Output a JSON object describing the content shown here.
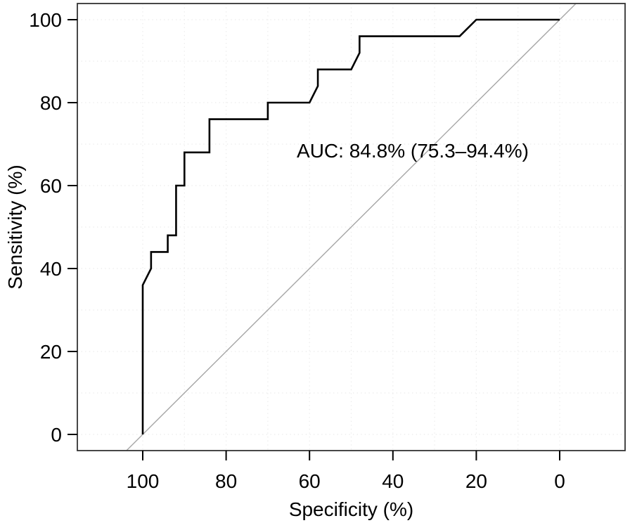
{
  "figure": {
    "background": "#ffffff"
  },
  "chart_data": {
    "type": "line",
    "subtype": "roc-step-curve",
    "title": "",
    "xlabel": "Specificity (%)",
    "ylabel": "Sensitivity (%)",
    "x_direction": "reversed",
    "xlim": [
      100,
      0
    ],
    "ylim": [
      0,
      100
    ],
    "x_ticks": [
      100,
      80,
      60,
      40,
      20,
      0
    ],
    "y_ticks": [
      0,
      20,
      40,
      60,
      80,
      100
    ],
    "grid": {
      "show": true,
      "interval": 10,
      "style": "dotted",
      "color": "#ebebeb"
    },
    "annotation": {
      "text": "AUC: 84.8% (75.3–94.4%)",
      "auc_percent": 84.8,
      "ci_low_percent": 75.3,
      "ci_high_percent": 94.4
    },
    "series": [
      {
        "name": "ROC curve",
        "color": "#000000",
        "points": [
          [
            100,
            0
          ],
          [
            100,
            36
          ],
          [
            98,
            40
          ],
          [
            98,
            44
          ],
          [
            94,
            44
          ],
          [
            94,
            48
          ],
          [
            92,
            48
          ],
          [
            92,
            60
          ],
          [
            90,
            60
          ],
          [
            90,
            68
          ],
          [
            84,
            68
          ],
          [
            84,
            76
          ],
          [
            70,
            76
          ],
          [
            70,
            80
          ],
          [
            60,
            80
          ],
          [
            58,
            84
          ],
          [
            58,
            88
          ],
          [
            50,
            88
          ],
          [
            48,
            92
          ],
          [
            48,
            96
          ],
          [
            24,
            96
          ],
          [
            20,
            100
          ],
          [
            0,
            100
          ]
        ]
      }
    ],
    "reference_line": {
      "name": "chance diagonal",
      "from": [
        100,
        0
      ],
      "to": [
        0,
        100
      ],
      "color": "#a6a6a6"
    },
    "axis_color": "#333333",
    "tick_color": "#000000",
    "text_color": "#000000",
    "legend": {
      "show": false
    }
  }
}
